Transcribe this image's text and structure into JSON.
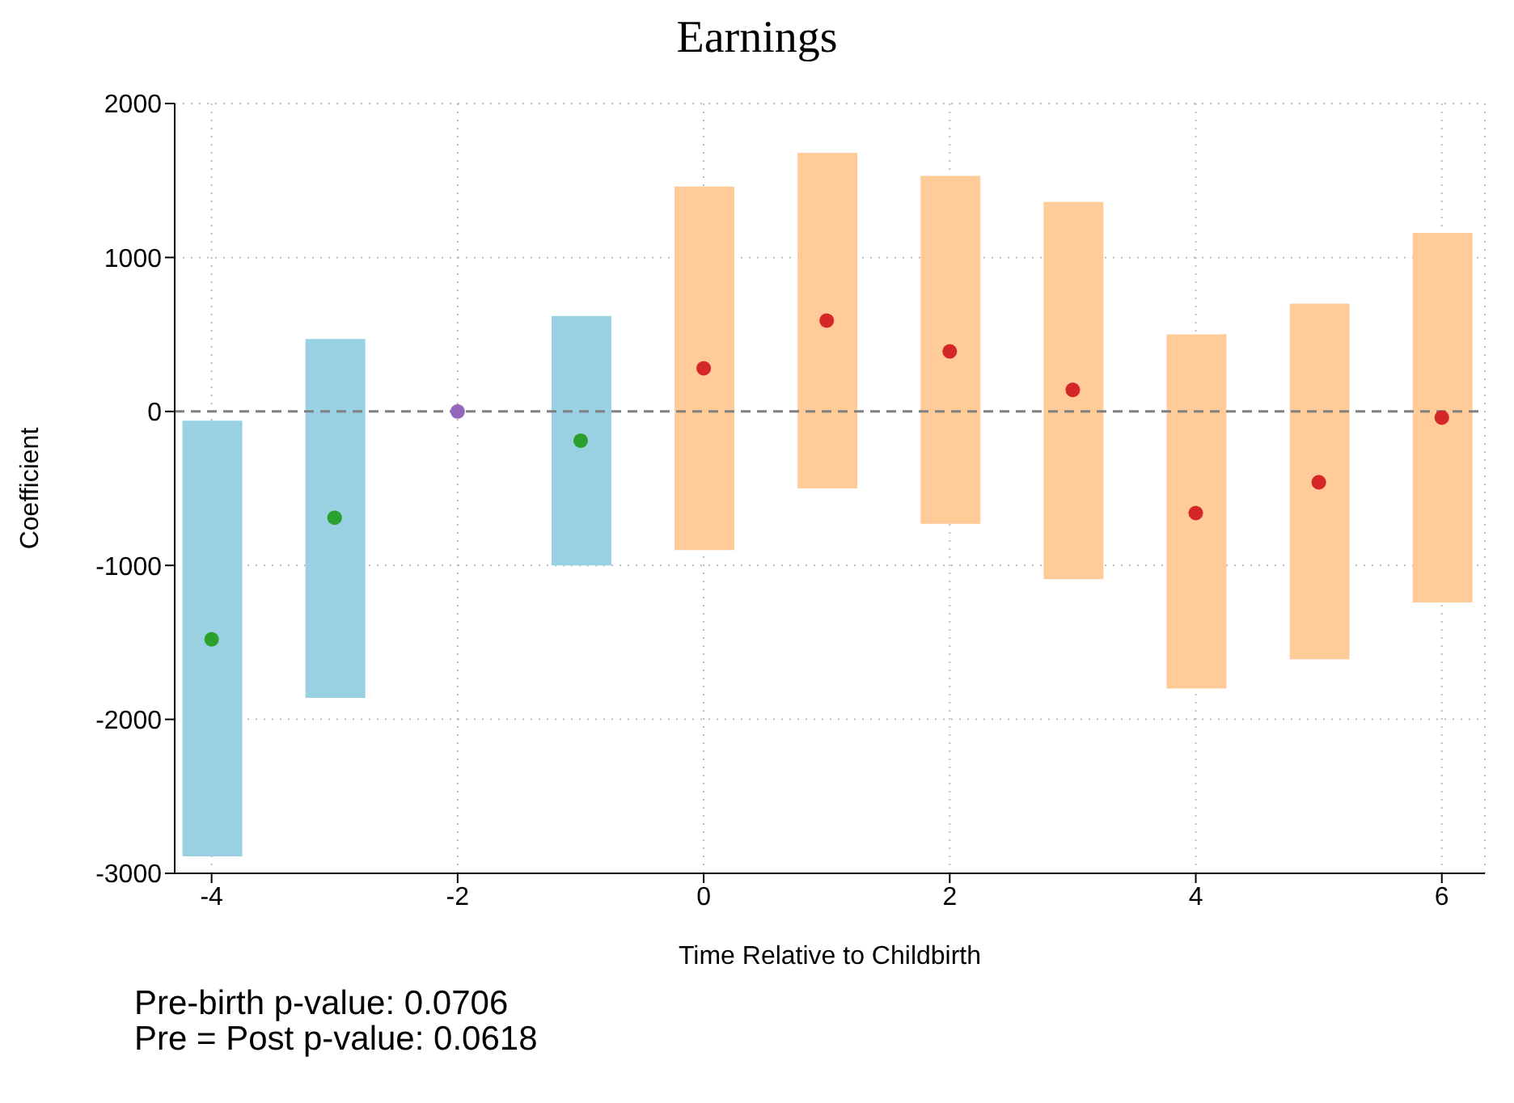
{
  "chart_data": {
    "type": "bar",
    "title": "Earnings",
    "xlabel": "Time Relative to Childbirth",
    "ylabel": "Coefficient",
    "x": [
      -4,
      -3,
      -2,
      -1,
      0,
      1,
      2,
      3,
      4,
      5,
      6
    ],
    "series": [
      {
        "base": [
          -2890,
          -1860,
          null,
          -1000,
          -900,
          -500,
          -730,
          -1090,
          -1800,
          -1610,
          -1240
        ],
        "values": [
          2830,
          2330,
          null,
          1620,
          2360,
          2180,
          2260,
          2450,
          2300,
          2310,
          2400
        ],
        "colors": [
          "#99d1e3",
          "#99d1e3",
          "#99d1e3",
          "#99d1e3",
          "#ffcb99",
          "#ffcb99",
          "#ffcb99",
          "#ffcb99",
          "#ffcb99",
          "#ffcb99",
          "#ffcb99"
        ]
      },
      {
        "type": "scatter",
        "values": [
          -1480,
          -690,
          0,
          -190,
          280,
          590,
          390,
          140,
          -660,
          -460,
          -40
        ],
        "colors": [
          "#2ca02c",
          "#2ca02c",
          "#9467bd",
          "#2ca02c",
          "#d62728",
          "#d62728",
          "#d62728",
          "#d62728",
          "#d62728",
          "#d62728",
          "#d62728"
        ]
      }
    ],
    "xlim": [
      -4.3,
      6.35
    ],
    "xticks": [
      -4,
      -2,
      0,
      2,
      4,
      6
    ],
    "ylim": [
      -3000,
      2000
    ],
    "yticks": [
      -3000,
      -2000,
      -1000,
      0,
      1000,
      2000
    ],
    "ref_lines": [
      {
        "axis": "y",
        "value": 0,
        "color": "#808080",
        "line_style": "dashed"
      }
    ],
    "grid": true,
    "marker": "circle",
    "annotations": [
      "Pre-birth p-value: 0.0706",
      "Pre = Post p-value: 0.0618"
    ]
  }
}
